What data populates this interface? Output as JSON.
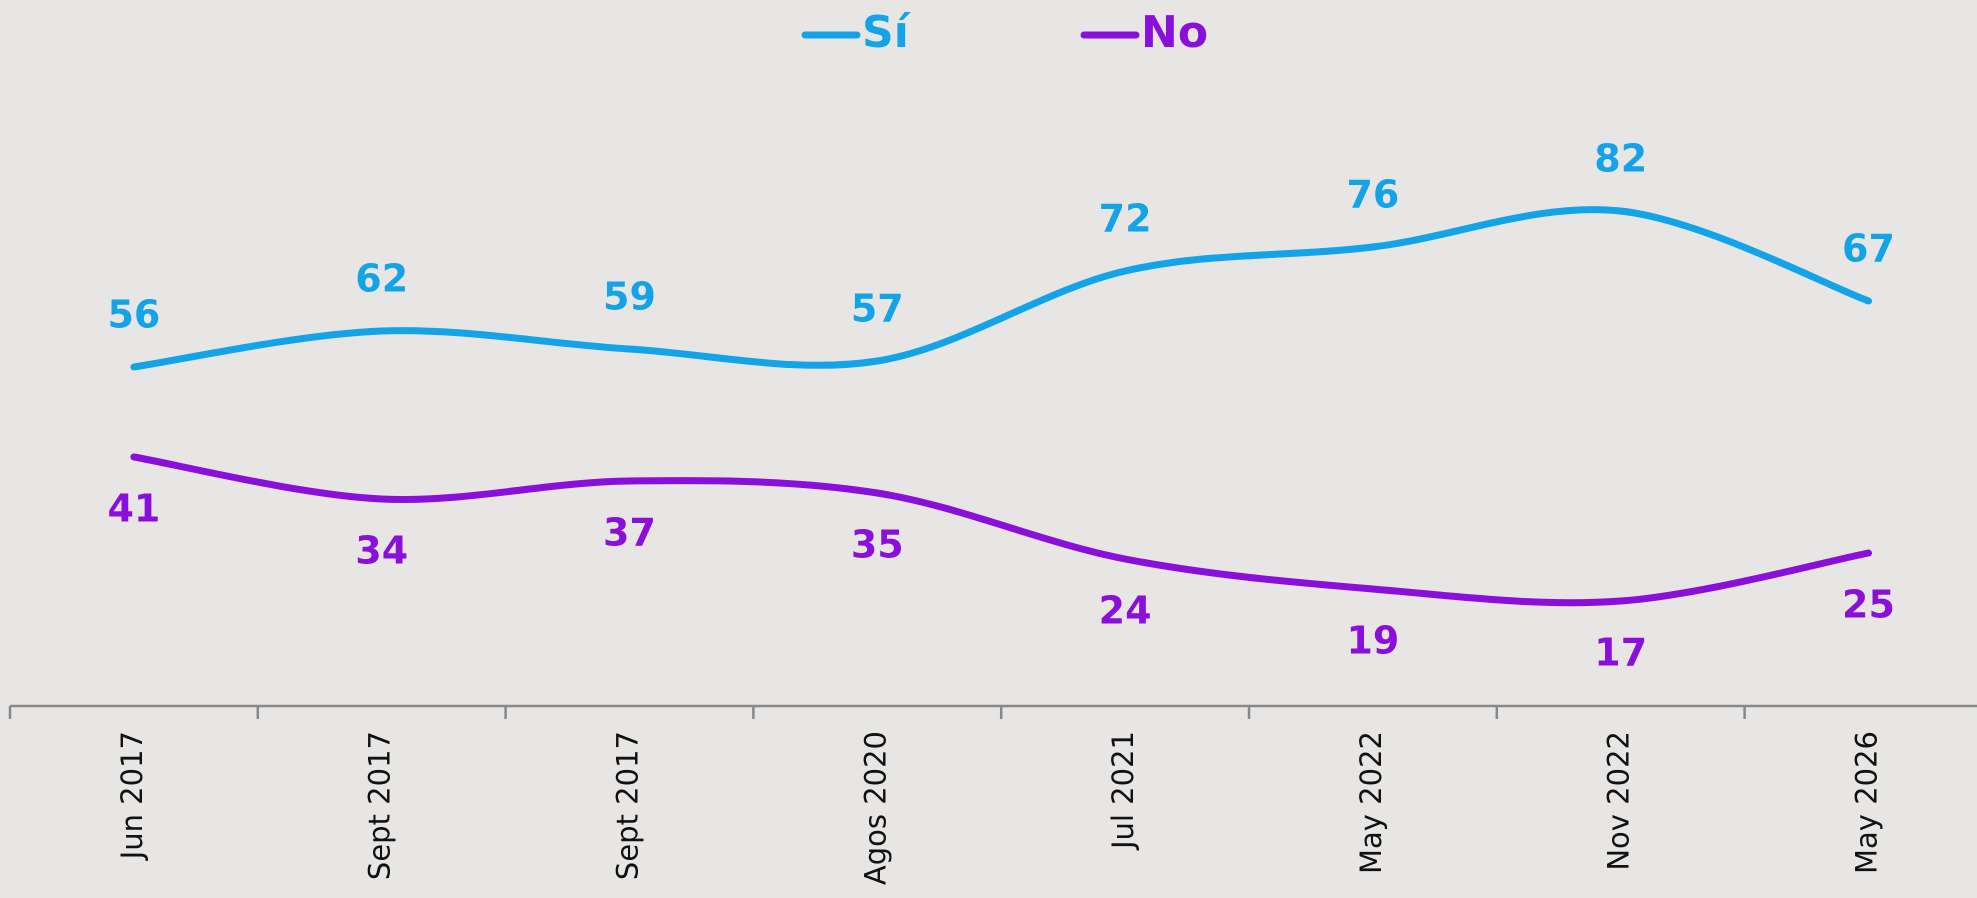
{
  "chart_data": {
    "type": "line",
    "categories": [
      "Jun 2017",
      "Sept 2017",
      "Sept 2017",
      "Agos 2020",
      "Jul 2021",
      "May 2022",
      "Nov 2022",
      "May 2026"
    ],
    "series": [
      {
        "name": "Sí",
        "color": "#12a3e8",
        "values": [
          56,
          62,
          59,
          57,
          72,
          76,
          82,
          67
        ]
      },
      {
        "name": "No",
        "color": "#8a0fdb",
        "values": [
          41,
          34,
          37,
          35,
          24,
          19,
          17,
          25
        ]
      }
    ],
    "ylim": [
      0,
      117
    ],
    "smooth": true,
    "legend": "top"
  }
}
